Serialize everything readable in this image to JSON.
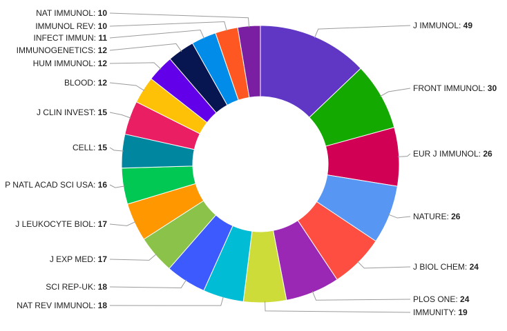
{
  "chart_data": {
    "type": "pie",
    "variant": "donut",
    "title": "",
    "legend": "none (slices labelled directly with leader lines)",
    "slices": [
      {
        "label": "J IMMUNOL",
        "value": 49,
        "color": "#5f37c4"
      },
      {
        "label": "FRONT IMMUNOL",
        "value": 30,
        "color": "#13a900"
      },
      {
        "label": "EUR J IMMUNOL",
        "value": 26,
        "color": "#d10055"
      },
      {
        "label": "NATURE",
        "value": 26,
        "color": "#5796f2"
      },
      {
        "label": "J BIOL CHEM",
        "value": 24,
        "color": "#fd4e41"
      },
      {
        "label": "PLOS ONE",
        "value": 24,
        "color": "#9a28b4"
      },
      {
        "label": "IMMUNITY",
        "value": 19,
        "color": "#cddc39"
      },
      {
        "label": "NAT REV IMMUNOL",
        "value": 18,
        "color": "#00bcd4"
      },
      {
        "label": "SCI REP-UK",
        "value": 18,
        "color": "#3d5afe"
      },
      {
        "label": "J EXP MED",
        "value": 17,
        "color": "#8bc34a"
      },
      {
        "label": "J LEUKOCYTE BIOL",
        "value": 17,
        "color": "#ff9800"
      },
      {
        "label": "P NATL ACAD SCI USA",
        "value": 16,
        "color": "#00c853"
      },
      {
        "label": "CELL",
        "value": 15,
        "color": "#00879f"
      },
      {
        "label": "J CLIN INVEST",
        "value": 15,
        "color": "#e91e63"
      },
      {
        "label": "BLOOD",
        "value": 12,
        "color": "#ffc107"
      },
      {
        "label": "HUM IMMUNOL",
        "value": 12,
        "color": "#6200ea"
      },
      {
        "label": "IMMUNOGENETICS",
        "value": 12,
        "color": "#071550"
      },
      {
        "label": "INFECT IMMUN",
        "value": 11,
        "color": "#008ce8"
      },
      {
        "label": "IMMUNOL REV",
        "value": 10,
        "color": "#ff5722"
      },
      {
        "label": "NAT IMMUNOL",
        "value": 10,
        "color": "#7b1fa2"
      }
    ]
  }
}
